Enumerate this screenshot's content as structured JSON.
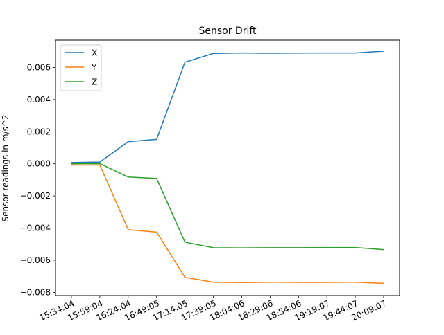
{
  "chart_data": {
    "type": "line",
    "title": "Sensor Drift",
    "xlabel": "",
    "ylabel": "Sensor readings in m/s^2",
    "categories": [
      "15:34:04",
      "15:59:04",
      "16:24:04",
      "16:49:05",
      "17:14:05",
      "17:39:05",
      "18:04:06",
      "18:29:06",
      "18:54:06",
      "19:19:07",
      "19:44:07",
      "20:09:07"
    ],
    "ylim": [
      -0.0082,
      0.0077
    ],
    "yticks": [
      0.006,
      0.004,
      0.002,
      0.0,
      -0.002,
      -0.004,
      -0.006,
      -0.008
    ],
    "ytick_labels": [
      "0.006",
      "0.004",
      "0.002",
      "0.000",
      "−0.002",
      "−0.004",
      "−0.006",
      "−0.008"
    ],
    "grid": false,
    "legend_position": "top-left",
    "series": [
      {
        "name": "X",
        "color": "#1f77b4",
        "values": [
          8e-05,
          0.00011,
          0.00138,
          0.00152,
          0.00633,
          0.00687,
          0.0069,
          0.00688,
          0.00689,
          0.0069,
          0.0069,
          0.00701
        ]
      },
      {
        "name": "Y",
        "color": "#ff7f0e",
        "values": [
          -8e-05,
          -8e-05,
          -0.0041,
          -0.00425,
          -0.00707,
          -0.00737,
          -0.00739,
          -0.00737,
          -0.00738,
          -0.00738,
          -0.00737,
          -0.00744
        ]
      },
      {
        "name": "Z",
        "color": "#2ca02c",
        "values": [
          0.0,
          1e-05,
          -0.00082,
          -0.00091,
          -0.00488,
          -0.00522,
          -0.00523,
          -0.00522,
          -0.00522,
          -0.00521,
          -0.00521,
          -0.00534
        ]
      }
    ]
  }
}
